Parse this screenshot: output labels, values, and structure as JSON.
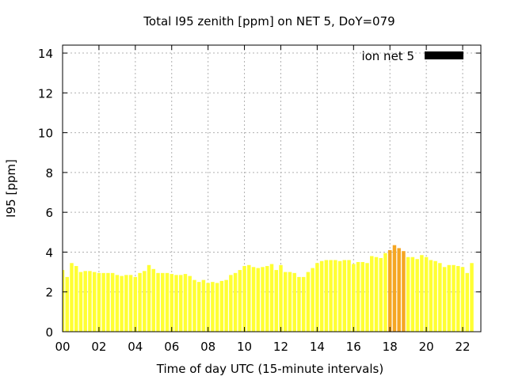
{
  "chart_data": {
    "type": "bar",
    "title": "Total I95 zenith [ppm] on NET 5, DoY=079",
    "xlabel": "Time of day UTC (15-minute intervals)",
    "ylabel": "I95 [ppm]",
    "xlim": [
      0,
      23
    ],
    "ylim": [
      0,
      14.4
    ],
    "x_ticks": [
      "00",
      "02",
      "04",
      "06",
      "08",
      "10",
      "12",
      "14",
      "16",
      "18",
      "20",
      "22"
    ],
    "y_ticks": [
      "0",
      "2",
      "4",
      "6",
      "8",
      "10",
      "12",
      "14"
    ],
    "grid": true,
    "legend": {
      "position": "top-right",
      "entries": [
        "ion net 5"
      ]
    },
    "colors": {
      "bar_normal": "#ffff33",
      "bar_elevated": "#f5a623",
      "legend_swatch": "#000000",
      "grid": "#b0b0b0"
    },
    "series": [
      {
        "name": "ion net 5",
        "interval_hours": 0.25,
        "values": [
          3.1,
          2.75,
          3.45,
          3.3,
          3.0,
          3.05,
          3.05,
          3.0,
          2.95,
          2.95,
          2.95,
          2.95,
          2.85,
          2.8,
          2.85,
          2.85,
          2.75,
          2.95,
          3.05,
          3.35,
          3.15,
          2.95,
          2.95,
          2.95,
          2.9,
          2.85,
          2.85,
          2.9,
          2.8,
          2.6,
          2.5,
          2.6,
          2.45,
          2.5,
          2.45,
          2.55,
          2.6,
          2.85,
          2.95,
          3.1,
          3.3,
          3.35,
          3.25,
          3.2,
          3.25,
          3.3,
          3.4,
          3.1,
          3.35,
          3.0,
          3.0,
          2.95,
          2.75,
          2.75,
          3.0,
          3.2,
          3.45,
          3.55,
          3.6,
          3.6,
          3.6,
          3.55,
          3.6,
          3.6,
          3.4,
          3.5,
          3.5,
          3.45,
          3.8,
          3.75,
          3.7,
          3.95,
          4.1,
          4.35,
          4.2,
          4.05,
          3.75,
          3.75,
          3.65,
          3.85,
          3.75,
          3.6,
          3.55,
          3.45,
          3.25,
          3.35,
          3.35,
          3.3,
          3.25,
          2.95,
          3.45
        ],
        "elevated_indices": [
          72,
          73,
          74,
          75
        ]
      }
    ]
  }
}
